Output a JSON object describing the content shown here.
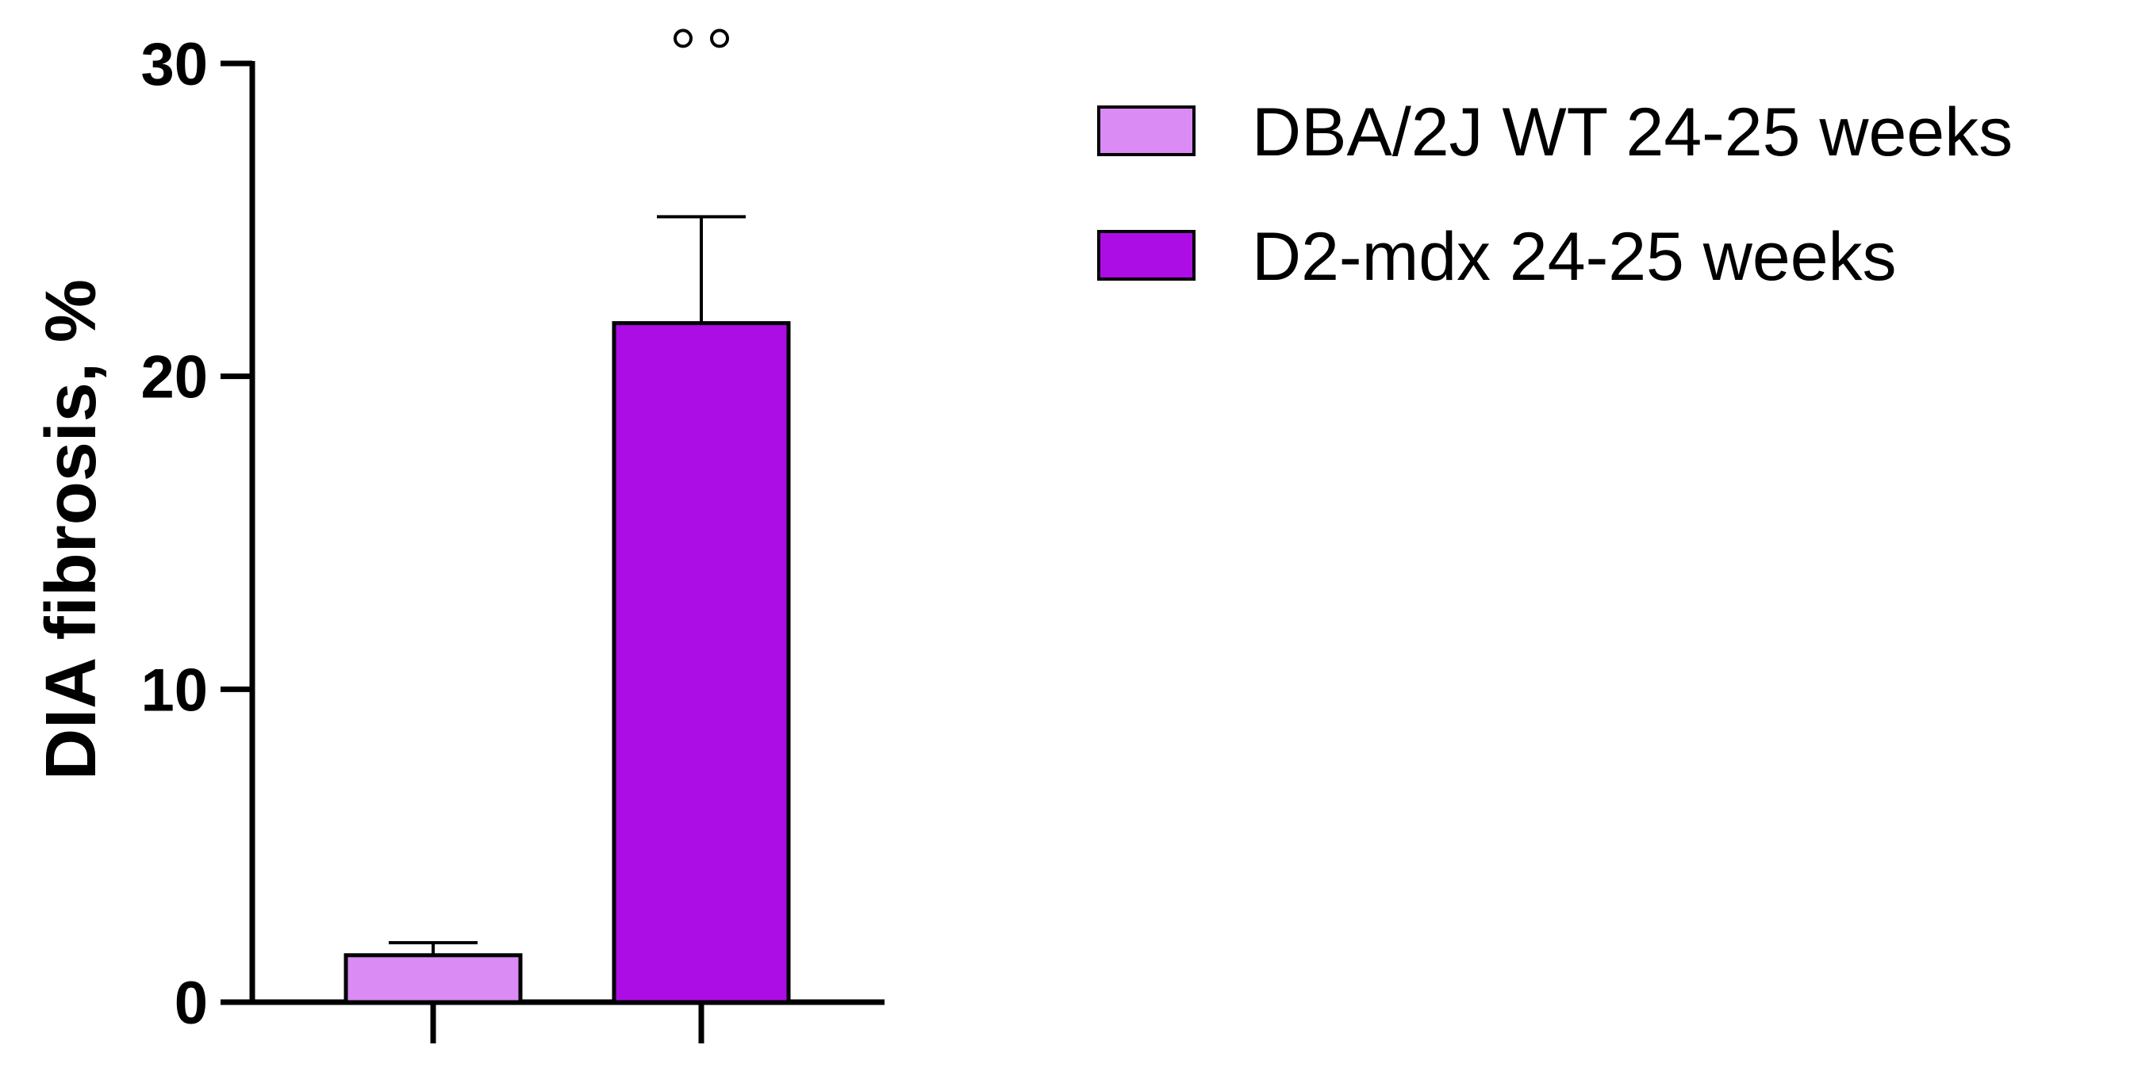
{
  "chart_data": {
    "type": "bar",
    "title": "",
    "xlabel": "",
    "ylabel": "DIA fibrosis, %",
    "ylim": [
      0,
      30
    ],
    "yticks": [
      0,
      10,
      20,
      30
    ],
    "categories": [
      "DBA/2J WT 24-25 weeks",
      "D2-mdx 24-25 weeks"
    ],
    "series": [
      {
        "name": "DBA/2J WT 24-25 weeks",
        "value": 1.5,
        "error": 0.4,
        "color": "#DA8BF4"
      },
      {
        "name": "D2-mdx 24-25 weeks",
        "value": 21.7,
        "error": 3.4,
        "color": "#AC0DE4"
      }
    ],
    "outliers": [
      {
        "series": "D2-mdx 24-25 weeks",
        "y": 30.8
      },
      {
        "series": "D2-mdx 24-25 weeks",
        "y": 30.8
      }
    ],
    "legend_position": "top-right",
    "grid": false
  }
}
